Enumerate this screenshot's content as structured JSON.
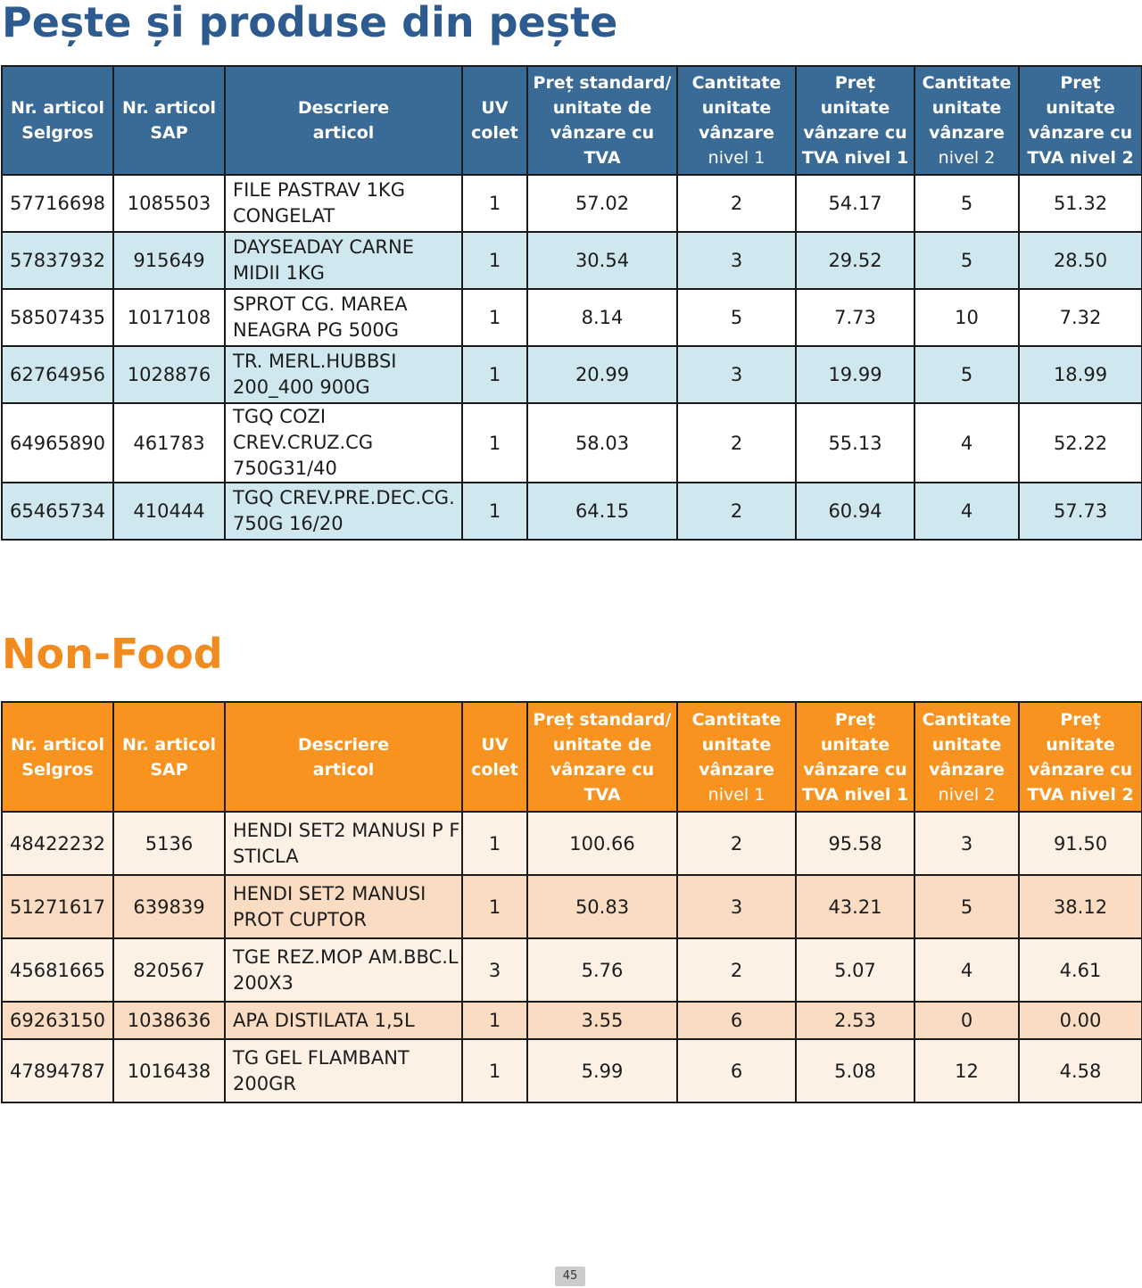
{
  "sections": [
    {
      "title": "Pește și produse din pește",
      "headers": [
        [
          "Nr. articol",
          "Selgros"
        ],
        [
          "Nr. articol",
          "SAP"
        ],
        [
          "Descriere",
          "articol"
        ],
        [
          "UV",
          "colet"
        ],
        [
          "Preț standard/",
          "unitate de",
          "vânzare cu",
          "TVA"
        ],
        [
          "Cantitate",
          "unitate",
          "vânzare",
          "nivel 1"
        ],
        [
          "Preț",
          "unitate",
          "vânzare cu",
          "TVA nivel 1"
        ],
        [
          "Cantitate",
          "unitate",
          "vânzare",
          "nivel 2"
        ],
        [
          "Preț",
          "unitate",
          "vânzare cu",
          "TVA nivel 2"
        ]
      ],
      "rows": [
        [
          "57716698",
          "1085503",
          "FILE PASTRAV 1KG CONGELAT",
          "1",
          "57.02",
          "2",
          "54.17",
          "5",
          "51.32"
        ],
        [
          "57837932",
          "915649",
          "DAYSEADAY CARNE MIDII 1KG",
          "1",
          "30.54",
          "3",
          "29.52",
          "5",
          "28.50"
        ],
        [
          "58507435",
          "1017108",
          "SPROT CG. MAREA NEAGRA PG 500G",
          "1",
          "8.14",
          "5",
          "7.73",
          "10",
          "7.32"
        ],
        [
          "62764956",
          "1028876",
          "TR. MERL.HUBBSI 200_400 900G",
          "1",
          "20.99",
          "3",
          "19.99",
          "5",
          "18.99"
        ],
        [
          "64965890",
          "461783",
          "TGQ COZI CREV.CRUZ.CG 750G31/40",
          "1",
          "58.03",
          "2",
          "55.13",
          "4",
          "52.22"
        ],
        [
          "65465734",
          "410444",
          "TGQ CREV.PRE.DEC.CG. 750G 16/20",
          "1",
          "64.15",
          "2",
          "60.94",
          "4",
          "57.73"
        ]
      ]
    },
    {
      "title": "Non-Food",
      "headers": [
        [
          "Nr. articol",
          "Selgros"
        ],
        [
          "Nr. articol",
          "SAP"
        ],
        [
          "Descriere",
          "articol"
        ],
        [
          "UV",
          "colet"
        ],
        [
          "Preț standard/",
          "unitate de",
          "vânzare cu",
          "TVA"
        ],
        [
          "Cantitate",
          "unitate",
          "vânzare",
          "nivel 1"
        ],
        [
          "Preț",
          "unitate",
          "vânzare cu",
          "TVA nivel 1"
        ],
        [
          "Cantitate",
          "unitate",
          "vânzare",
          "nivel 2"
        ],
        [
          "Preț",
          "unitate",
          "vânzare cu",
          "TVA nivel 2"
        ]
      ],
      "rows": [
        [
          "48422232",
          "5136",
          "HENDI SET2 MANUSI P F STICLA",
          "1",
          "100.66",
          "2",
          "95.58",
          "3",
          "91.50"
        ],
        [
          "51271617",
          "639839",
          "HENDI SET2 MANUSI PROT CUPTOR",
          "1",
          "50.83",
          "3",
          "43.21",
          "5",
          "38.12"
        ],
        [
          "45681665",
          "820567",
          "TGE REZ.MOP AM.BBC.L 200X3",
          "3",
          "5.76",
          "2",
          "5.07",
          "4",
          "4.61"
        ],
        [
          "69263150",
          "1038636",
          "APA DISTILATA 1,5L",
          "1",
          "3.55",
          "6",
          "2.53",
          "0",
          "0.00"
        ],
        [
          "47894787",
          "1016438",
          "TG GEL FLAMBANT 200GR",
          "1",
          "5.99",
          "6",
          "5.08",
          "12",
          "4.58"
        ]
      ]
    }
  ],
  "page_number": "45",
  "colors": {
    "fish_title": "#2d5b8f",
    "fish_header": "#3a6a96",
    "fish_row_alt": "#cfe8ef",
    "nonfood_title": "#f28b1f",
    "nonfood_header": "#f7931e",
    "nonfood_row": "#fdf1e6",
    "nonfood_row_alt": "#fadcc2"
  }
}
